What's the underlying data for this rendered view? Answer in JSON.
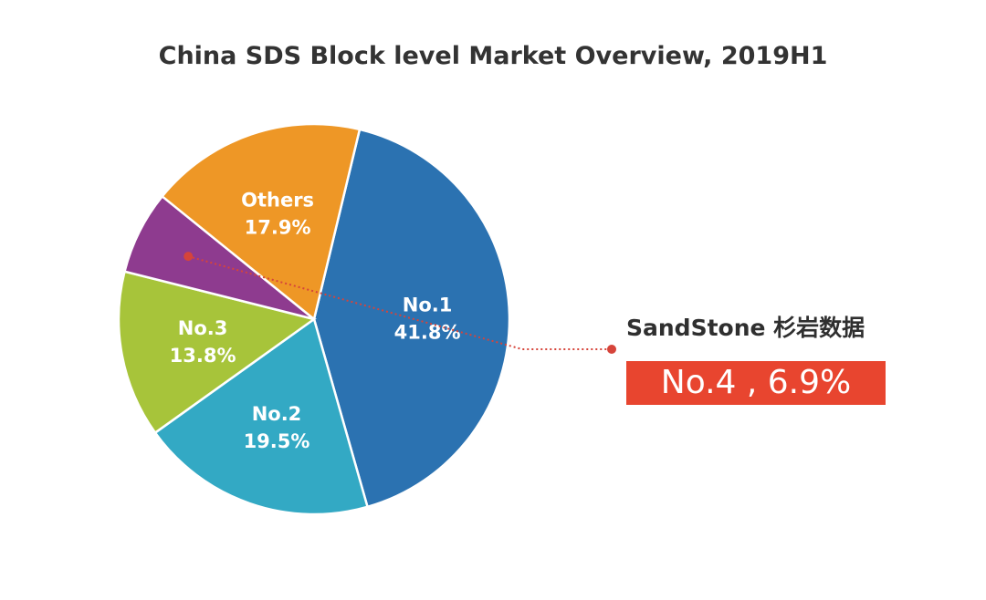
{
  "chart_data": {
    "type": "pie",
    "title": "China SDS Block level Market Overview, 2019H1",
    "slices": [
      {
        "name": "No.1",
        "label": "No.1",
        "value": 41.8,
        "value_label": "41.8%",
        "color": "#2b72b1"
      },
      {
        "name": "No.2",
        "label": "No.2",
        "value": 19.5,
        "value_label": "19.5%",
        "color": "#33a9c4"
      },
      {
        "name": "No.3",
        "label": "No.3",
        "value": 13.8,
        "value_label": "13.8%",
        "color": "#a7c43a"
      },
      {
        "name": "No.4",
        "label": "",
        "value": 6.9,
        "value_label": "",
        "color": "#8e3b8f"
      },
      {
        "name": "Others",
        "label": "Others",
        "value": 17.9,
        "value_label": "17.9%",
        "color": "#ee9726"
      }
    ],
    "start_angle_deg": 13.5,
    "direction": "clockwise",
    "annotations": [
      {
        "target": "No.4",
        "brand": "SandStone 杉岩数据",
        "text": "No.4 , 6.9%",
        "box_color": "#e8452f",
        "leader_color": "#d6443a"
      }
    ]
  }
}
